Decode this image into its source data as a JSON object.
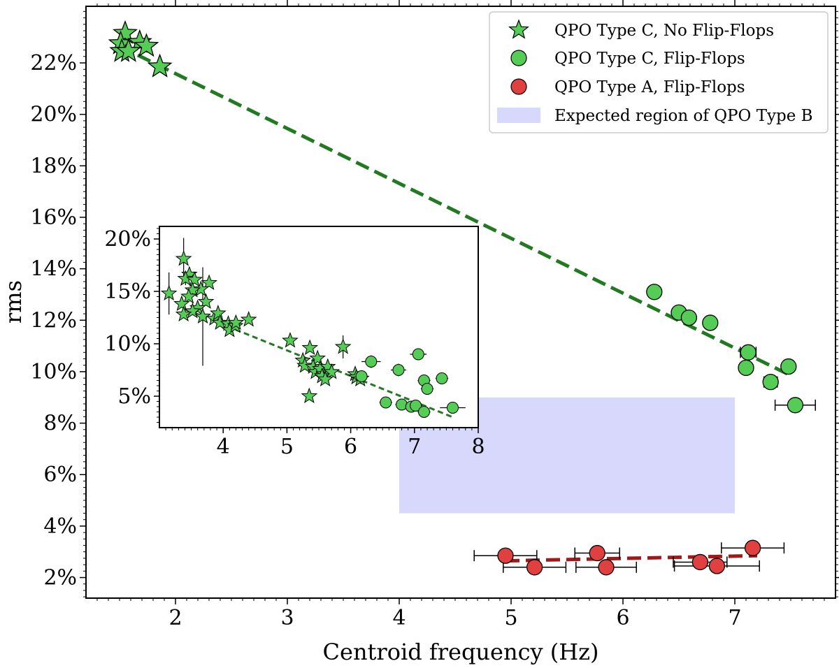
{
  "chart_data": {
    "type": "scatter",
    "xlabel": "Centroid frequency (Hz)",
    "ylabel": "rms",
    "xlim": [
      1.2,
      7.9
    ],
    "ylim": [
      1.2,
      24.2
    ],
    "x_ticks": [
      "2",
      "3",
      "4",
      "5",
      "6",
      "7"
    ],
    "y_ticks": [
      "2%",
      "4%",
      "6%",
      "8%",
      "10%",
      "12%",
      "14%",
      "16%",
      "18%",
      "20%",
      "22%"
    ],
    "grid": false,
    "legend_position": "top-right",
    "colors": {
      "green": "#55cc55",
      "red": "#e04040",
      "green_fit": "#217a21",
      "red_fit": "#a01818",
      "region": "#d8d8fc"
    },
    "legend": [
      {
        "label": "QPO Type C, No Flip-Flops",
        "marker": "star"
      },
      {
        "label": "QPO Type C, Flip-Flops",
        "marker": "circle-green"
      },
      {
        "label": "QPO Type A, Flip-Flops",
        "marker": "circle-red"
      },
      {
        "label": "Expected region of QPO Type B",
        "marker": "patch"
      }
    ],
    "series": [
      {
        "name": "QPO Type C, No Flip-Flops",
        "marker": "star",
        "points": [
          {
            "x": 1.55,
            "y": 23.15
          },
          {
            "x": 1.51,
            "y": 22.75
          },
          {
            "x": 1.68,
            "y": 22.8
          },
          {
            "x": 1.74,
            "y": 22.65
          },
          {
            "x": 1.52,
            "y": 22.45
          },
          {
            "x": 1.58,
            "y": 22.45
          },
          {
            "x": 1.86,
            "y": 21.85
          }
        ]
      },
      {
        "name": "QPO Type C, Flip-Flops",
        "marker": "circle",
        "points": [
          {
            "x": 6.28,
            "y": 13.1,
            "xerr": 0
          },
          {
            "x": 6.5,
            "y": 12.3,
            "xerr": 0
          },
          {
            "x": 6.59,
            "y": 12.1,
            "xerr": 0
          },
          {
            "x": 6.78,
            "y": 11.9,
            "xerr": 0
          },
          {
            "x": 7.12,
            "y": 10.75,
            "xerr": 0.07
          },
          {
            "x": 7.1,
            "y": 10.15,
            "xerr": 0
          },
          {
            "x": 7.48,
            "y": 10.2,
            "xerr": 0
          },
          {
            "x": 7.32,
            "y": 9.6,
            "xerr": 0.06
          },
          {
            "x": 7.54,
            "y": 8.7,
            "xerr": 0.18
          }
        ]
      },
      {
        "name": "QPO Type A, Flip-Flops",
        "marker": "circle-red",
        "points": [
          {
            "x": 4.95,
            "y": 2.85,
            "xerr": 0.28
          },
          {
            "x": 5.21,
            "y": 2.4,
            "xerr": 0.28
          },
          {
            "x": 5.77,
            "y": 2.95,
            "xerr": 0.2
          },
          {
            "x": 5.85,
            "y": 2.4,
            "xerr": 0.27
          },
          {
            "x": 6.69,
            "y": 2.6,
            "xerr": 0.24
          },
          {
            "x": 6.84,
            "y": 2.45,
            "xerr": 0.38
          },
          {
            "x": 7.16,
            "y": 3.15,
            "xerr": 0.28
          }
        ]
      }
    ],
    "fit_lines": [
      {
        "series": "QPO Type C",
        "x": [
          1.5,
          7.5
        ],
        "y": [
          22.65,
          9.85
        ],
        "style": "dashed",
        "color": "#217a21"
      },
      {
        "series": "QPO Type A",
        "x": [
          4.95,
          7.2
        ],
        "y": [
          2.65,
          2.85
        ],
        "style": "dashed",
        "color": "#a01818"
      }
    ],
    "region": {
      "label": "Expected region of QPO Type B",
      "x": [
        4.0,
        7.0
      ],
      "y": [
        4.5,
        9.0
      ]
    },
    "inset": {
      "xlim": [
        3.0,
        8.0
      ],
      "ylim": [
        2.0,
        21.2
      ],
      "x_ticks": [
        "4",
        "5",
        "6",
        "7",
        "8"
      ],
      "y_ticks": [
        "5%",
        "10%",
        "15%",
        "20%"
      ],
      "stars": [
        {
          "x": 3.38,
          "y": 18.1,
          "yerr": 2.0
        },
        {
          "x": 3.47,
          "y": 16.6,
          "yerr": 0.5
        },
        {
          "x": 3.41,
          "y": 16.2,
          "yerr": 0.6
        },
        {
          "x": 3.55,
          "y": 16.1
        },
        {
          "x": 3.78,
          "y": 15.8
        },
        {
          "x": 3.65,
          "y": 15.2
        },
        {
          "x": 3.52,
          "y": 15.1
        },
        {
          "x": 3.15,
          "y": 14.8,
          "yerr": 2.0
        },
        {
          "x": 3.46,
          "y": 14.5
        },
        {
          "x": 3.73,
          "y": 14.0
        },
        {
          "x": 3.35,
          "y": 13.8
        },
        {
          "x": 3.6,
          "y": 13.4
        },
        {
          "x": 3.52,
          "y": 13.1
        },
        {
          "x": 3.38,
          "y": 12.8
        },
        {
          "x": 3.68,
          "y": 12.6,
          "yerr": 4.7
        },
        {
          "x": 3.86,
          "y": 12.4
        },
        {
          "x": 3.92,
          "y": 12.9
        },
        {
          "x": 3.95,
          "y": 12.0
        },
        {
          "x": 4.08,
          "y": 11.9
        },
        {
          "x": 4.1,
          "y": 11.3
        },
        {
          "x": 4.19,
          "y": 11.7
        },
        {
          "x": 4.2,
          "y": 12.0
        },
        {
          "x": 4.4,
          "y": 12.3
        },
        {
          "x": 5.05,
          "y": 10.3
        },
        {
          "x": 5.36,
          "y": 9.6
        },
        {
          "x": 5.88,
          "y": 9.7,
          "yerr": 1.1
        },
        {
          "x": 5.25,
          "y": 8.4
        },
        {
          "x": 5.48,
          "y": 8.6
        },
        {
          "x": 5.28,
          "y": 7.9
        },
        {
          "x": 5.41,
          "y": 7.8
        },
        {
          "x": 5.45,
          "y": 7.3
        },
        {
          "x": 5.52,
          "y": 7.6
        },
        {
          "x": 5.58,
          "y": 7.1
        },
        {
          "x": 5.64,
          "y": 7.8
        },
        {
          "x": 5.7,
          "y": 7.3
        },
        {
          "x": 5.55,
          "y": 6.9
        },
        {
          "x": 5.6,
          "y": 6.6
        },
        {
          "x": 6.07,
          "y": 7.1
        },
        {
          "x": 6.09,
          "y": 6.8
        },
        {
          "x": 6.15,
          "y": 6.6
        },
        {
          "x": 5.35,
          "y": 5.0
        }
      ],
      "circles": [
        {
          "x": 6.32,
          "y": 8.3,
          "xerr": 0.15,
          "yerr": 0.6
        },
        {
          "x": 6.75,
          "y": 7.5,
          "xerr": 0.12,
          "yerr": 0.6
        },
        {
          "x": 7.06,
          "y": 9.0,
          "xerr": 0.13,
          "yerr": 0.5
        },
        {
          "x": 6.17,
          "y": 6.9,
          "xerr": 0.12,
          "yerr": 0.5
        },
        {
          "x": 7.15,
          "y": 6.5,
          "xerr": 0.1,
          "yerr": 0.5
        },
        {
          "x": 7.43,
          "y": 6.7,
          "xerr": 0.1,
          "yerr": 0.5
        },
        {
          "x": 7.2,
          "y": 5.7,
          "xerr": 0.1,
          "yerr": 0.5
        },
        {
          "x": 6.55,
          "y": 4.4,
          "xerr": 0.1,
          "yerr": 0.5
        },
        {
          "x": 6.8,
          "y": 4.2,
          "xerr": 0.1,
          "yerr": 0.5
        },
        {
          "x": 6.95,
          "y": 4.0,
          "xerr": 0.1,
          "yerr": 0.5
        },
        {
          "x": 7.02,
          "y": 4.1,
          "xerr": 0.1,
          "yerr": 0.5
        },
        {
          "x": 7.15,
          "y": 3.5,
          "xerr": 0.1,
          "yerr": 0.5
        },
        {
          "x": 7.6,
          "y": 3.9,
          "xerr": 0.2,
          "yerr": 0.5
        }
      ],
      "fit_line": {
        "x": [
          3.4,
          7.6
        ],
        "y": [
          13.3,
          3.0
        ]
      }
    }
  }
}
